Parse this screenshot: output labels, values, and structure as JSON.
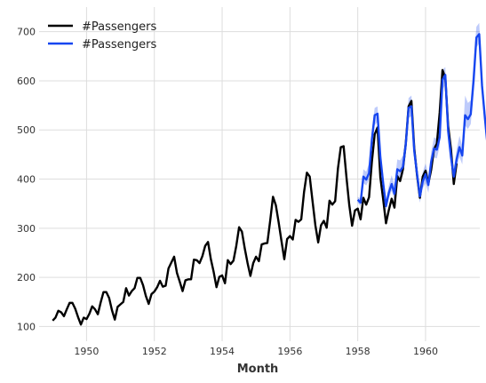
{
  "chart_data": {
    "type": "line",
    "xlabel": "Month",
    "ylabel": "",
    "xlim": [
      1948.6,
      1961.6
    ],
    "ylim": [
      70,
      750
    ],
    "grid": true,
    "legend": "top-left",
    "xticks": [
      1950,
      1952,
      1954,
      1956,
      1958,
      1960
    ],
    "xtick_labels": [
      "1950",
      "1952",
      "1954",
      "1956",
      "1958",
      "1960"
    ],
    "yticks": [
      100,
      200,
      300,
      400,
      500,
      600,
      700
    ],
    "ytick_labels": [
      "100",
      "200",
      "300",
      "400",
      "500",
      "600",
      "700"
    ],
    "series": [
      {
        "name": "#Passengers",
        "color": "#000000",
        "start": 1949.0,
        "step_months": 1,
        "values": [
          112,
          118,
          132,
          129,
          121,
          135,
          148,
          148,
          136,
          119,
          104,
          118,
          115,
          126,
          141,
          135,
          125,
          149,
          170,
          170,
          158,
          133,
          114,
          140,
          145,
          150,
          178,
          163,
          172,
          178,
          199,
          199,
          184,
          162,
          146,
          166,
          171,
          180,
          193,
          181,
          183,
          218,
          230,
          242,
          209,
          191,
          172,
          194,
          196,
          196,
          236,
          235,
          229,
          243,
          264,
          272,
          237,
          211,
          180,
          201,
          204,
          188,
          235,
          227,
          234,
          264,
          302,
          293,
          259,
          229,
          203,
          229,
          242,
          233,
          267,
          269,
          270,
          315,
          364,
          347,
          312,
          274,
          237,
          278,
          284,
          277,
          317,
          313,
          318,
          374,
          413,
          405,
          355,
          306,
          271,
          306,
          315,
          301,
          356,
          348,
          355,
          422,
          465,
          467,
          404,
          347,
          305,
          336,
          340,
          318,
          362,
          348,
          363,
          435,
          491,
          505,
          404,
          359,
          310,
          337,
          360,
          342,
          406,
          396,
          420,
          472,
          548,
          559,
          463,
          407,
          362,
          405,
          417,
          391,
          419,
          461,
          472,
          535,
          622,
          606,
          508,
          461,
          390,
          432
        ]
      },
      {
        "name": "#Passengers",
        "color": "#1646f0",
        "start": 1958.0,
        "step_months": 1,
        "values": [
          358,
          352,
          405,
          399,
          412,
          480,
          530,
          533,
          445,
          392,
          345,
          372,
          390,
          370,
          420,
          416,
          425,
          470,
          545,
          548,
          457,
          410,
          365,
          395,
          410,
          388,
          435,
          462,
          460,
          485,
          602,
          612,
          498,
          445,
          405,
          440,
          465,
          448,
          530,
          522,
          532,
          600,
          688,
          695,
          590,
          525,
          465,
          500
        ],
        "band_lower": [
          352,
          345,
          392,
          387,
          398,
          462,
          510,
          516,
          430,
          380,
          335,
          361,
          376,
          357,
          405,
          400,
          408,
          452,
          525,
          528,
          440,
          395,
          352,
          381,
          392,
          372,
          418,
          444,
          442,
          467,
          582,
          592,
          481,
          429,
          390,
          424,
          445,
          430,
          509,
          502,
          512,
          580,
          668,
          676,
          571,
          507,
          448,
          482
        ],
        "band_upper": [
          364,
          360,
          420,
          415,
          432,
          500,
          545,
          548,
          462,
          407,
          358,
          387,
          408,
          388,
          440,
          438,
          448,
          492,
          565,
          570,
          478,
          428,
          382,
          414,
          432,
          408,
          455,
          485,
          482,
          510,
          622,
          628,
          518,
          465,
          422,
          460,
          488,
          468,
          570,
          555,
          560,
          635,
          710,
          718,
          612,
          548,
          488,
          537
        ]
      }
    ]
  }
}
